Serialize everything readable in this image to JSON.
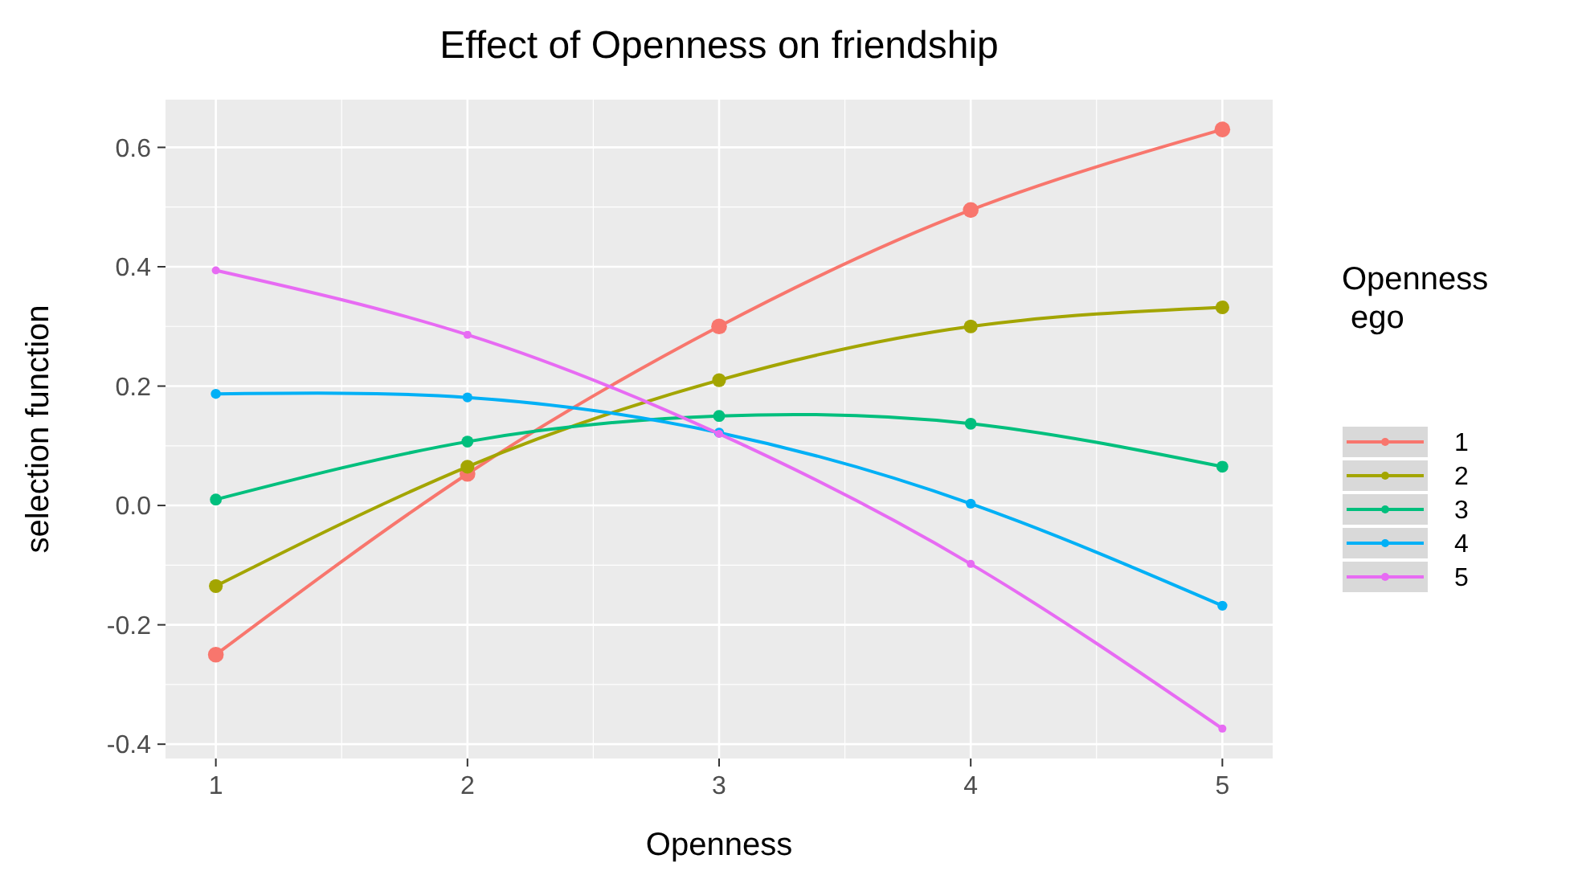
{
  "chart_data": {
    "type": "line",
    "title": "Effect of Openness on friendship",
    "xlabel": "Openness",
    "ylabel": "selection function",
    "legend_title": "Openness\n ego",
    "x": [
      1,
      2,
      3,
      4,
      5
    ],
    "series": [
      {
        "name": "1",
        "color": "#f8766d",
        "values": [
          -0.25,
          0.053,
          0.3,
          0.495,
          0.63
        ]
      },
      {
        "name": "2",
        "color": "#a3a500",
        "values": [
          -0.135,
          0.065,
          0.21,
          0.3,
          0.332
        ]
      },
      {
        "name": "3",
        "color": "#00bf7d",
        "values": [
          0.01,
          0.107,
          0.15,
          0.137,
          0.065
        ]
      },
      {
        "name": "4",
        "color": "#00b0f6",
        "values": [
          0.187,
          0.181,
          0.122,
          0.003,
          -0.168
        ]
      },
      {
        "name": "5",
        "color": "#e76bf3",
        "values": [
          0.394,
          0.286,
          0.12,
          -0.098,
          -0.374
        ]
      }
    ],
    "xlim": [
      0.8,
      5.2
    ],
    "xticks": [
      1,
      2,
      3,
      4,
      5
    ],
    "ylim": [
      -0.424,
      0.68
    ],
    "yticks": [
      -0.4,
      -0.2,
      {
        "value": 0,
        "label": "0.0"
      },
      0.2,
      0.4,
      0.6
    ],
    "grid": true,
    "legend": "right",
    "marker": "circle",
    "line_style": "solid"
  }
}
